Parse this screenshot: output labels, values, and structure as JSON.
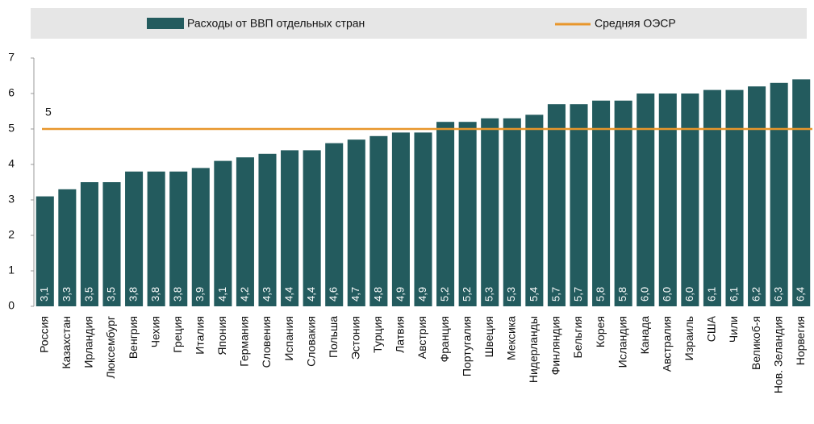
{
  "chart_data": {
    "type": "bar",
    "series": [
      {
        "name": "Расходы от ВВП отдельных стран",
        "color": "#235b5e",
        "values": [
          3.1,
          3.3,
          3.5,
          3.5,
          3.8,
          3.8,
          3.8,
          3.9,
          4.1,
          4.2,
          4.3,
          4.4,
          4.4,
          4.6,
          4.7,
          4.8,
          4.9,
          4.9,
          5.2,
          5.2,
          5.3,
          5.3,
          5.4,
          5.7,
          5.7,
          5.8,
          5.8,
          6.0,
          6.0,
          6.0,
          6.1,
          6.1,
          6.2,
          6.3,
          6.4
        ],
        "value_labels": [
          "3,1",
          "3,3",
          "3,5",
          "3,5",
          "3,8",
          "3,8",
          "3,8",
          "3,9",
          "4,1",
          "4,2",
          "4,3",
          "4,4",
          "4,4",
          "4,6",
          "4,7",
          "4,8",
          "4,9",
          "4,9",
          "5,2",
          "5,2",
          "5,3",
          "5,3",
          "5,4",
          "5,7",
          "5,7",
          "5,8",
          "5,8",
          "6,0",
          "6,0",
          "6,0",
          "6,1",
          "6,1",
          "6,2",
          "6,3",
          "6,4"
        ]
      }
    ],
    "categories": [
      "Россия",
      "Казахстан",
      "Ирландия",
      "Люксембург",
      "Венгрия",
      "Чехия",
      "Греция",
      "Италия",
      "Япония",
      "Германия",
      "Словения",
      "Испания",
      "Словакия",
      "Польша",
      "Эстония",
      "Турция",
      "Латвия",
      "Австрия",
      "Франция",
      "Португалия",
      "Швеция",
      "Мексика",
      "Нидерланды",
      "Финляндия",
      "Бельгия",
      "Корея",
      "Исландия",
      "Канада",
      "Австралия",
      "Израиль",
      "США",
      "Чили",
      "Великоб-я",
      "Нов. Зеландия",
      "Норвегия"
    ],
    "reference": {
      "name": "Средняя ОЭСР",
      "value": 5,
      "color": "#e8962b"
    },
    "ylim": [
      0,
      7
    ],
    "yticks": [
      0,
      1,
      2,
      3,
      4,
      5,
      6,
      7
    ]
  }
}
